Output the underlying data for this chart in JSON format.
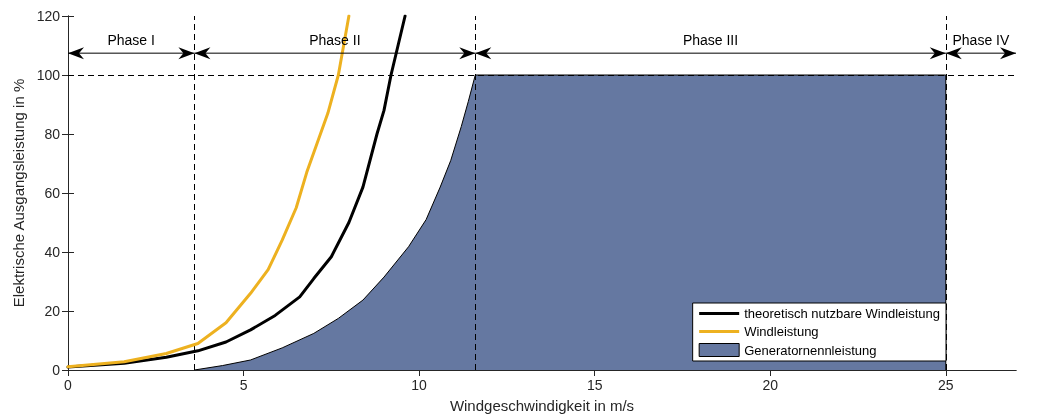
{
  "chart_data": {
    "type": "line",
    "xlabel": "Windgeschwindigkeit in m/s",
    "ylabel": "Elektrische Ausgangsleistung in %",
    "xlim": [
      0,
      27
    ],
    "xticks": [
      0,
      5,
      10,
      15,
      20,
      25
    ],
    "ylim": [
      0,
      120
    ],
    "yticks": [
      0,
      20,
      40,
      60,
      80,
      100,
      120
    ],
    "grid": false,
    "legend": "bottom right",
    "marker": "none",
    "series": [
      {
        "name": "theoretisch nutzbare Windleistung",
        "color": "#000000",
        "x": [
          0,
          1.6,
          2.8,
          3.7,
          4.5,
          5.2,
          5.9,
          6.6,
          7.0,
          7.5,
          8.0,
          8.4,
          8.8,
          9.0,
          9.2,
          9.4,
          9.6
        ],
        "values": [
          1,
          2.3,
          4.3,
          6.5,
          9.5,
          13.6,
          18.5,
          24.8,
          31,
          38.4,
          50,
          62,
          80,
          88,
          100,
          110,
          120
        ]
      },
      {
        "name": "Windleistung",
        "color": "#edb120",
        "x": [
          0,
          1.6,
          2.8,
          3.7,
          4.5,
          5.2,
          5.7,
          6.1,
          6.5,
          6.8,
          7.1,
          7.4,
          7.7,
          8.0
        ],
        "values": [
          1.1,
          2.8,
          5.6,
          9,
          16,
          26,
          34,
          44,
          55,
          67,
          77,
          87,
          100,
          120
        ]
      },
      {
        "name": "Generatornennleistung",
        "type": "area",
        "color": "#6578a1",
        "x": [
          3.6,
          4.4,
          5.2,
          6.1,
          7.0,
          7.7,
          8.4,
          9.0,
          9.7,
          10.2,
          10.6,
          10.9,
          11.2,
          11.4,
          11.6,
          25,
          25
        ],
        "values": [
          0,
          1.5,
          3.4,
          7.5,
          12.4,
          17.5,
          23.7,
          31.5,
          41.8,
          51,
          62,
          71,
          82.5,
          91,
          100,
          100,
          0
        ]
      }
    ],
    "ref_lines": [
      {
        "axis": "x",
        "value": 3.6,
        "label": null,
        "line_style": "dashed"
      },
      {
        "axis": "x",
        "value": 11.6,
        "label": null,
        "line_style": "dashed"
      },
      {
        "axis": "x",
        "value": 25,
        "label": null,
        "line_style": "dashed"
      },
      {
        "axis": "y",
        "value": 100,
        "label": null,
        "line_style": "dashed"
      }
    ],
    "annotations": [
      "Phase I",
      "Phase II",
      "Phase III",
      "Phase IV"
    ]
  }
}
